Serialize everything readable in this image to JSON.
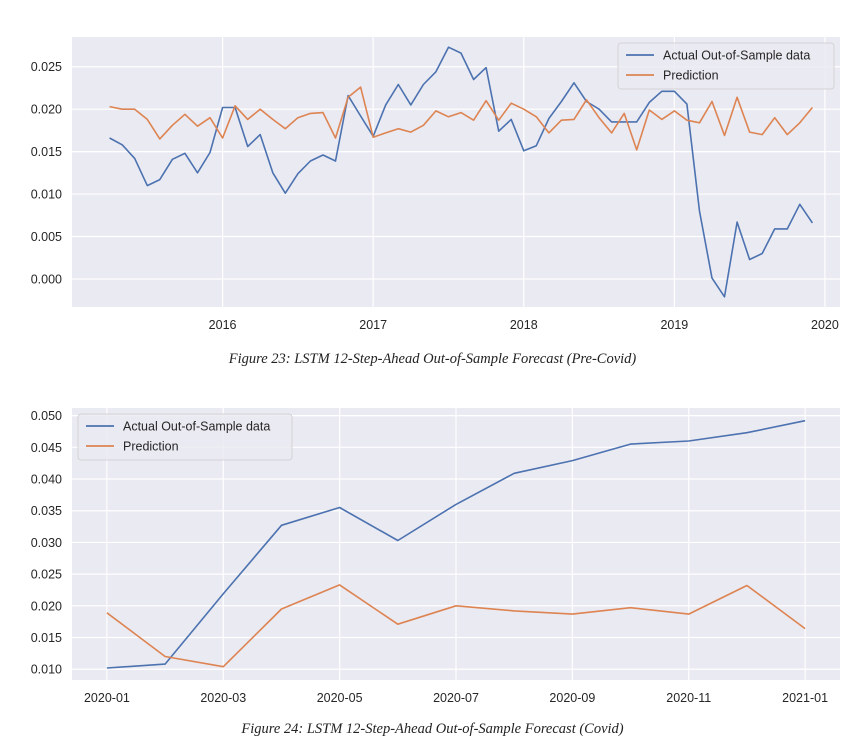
{
  "chart_data": [
    {
      "type": "line",
      "caption": "Figure 23: LSTM 12-Step-Ahead Out-of-Sample Forecast (Pre-Covid)",
      "x_start": 2015.25,
      "x_step_months": 1,
      "xlim": [
        2015.0,
        2020.1
      ],
      "ylim": [
        -0.0033,
        0.0285
      ],
      "x_ticks": [
        {
          "v": 2016,
          "label": "2016"
        },
        {
          "v": 2017,
          "label": "2017"
        },
        {
          "v": 2018,
          "label": "2018"
        },
        {
          "v": 2019,
          "label": "2019"
        },
        {
          "v": 2020,
          "label": "2020"
        }
      ],
      "y_ticks": [
        {
          "v": 0.0,
          "label": "0.000"
        },
        {
          "v": 0.005,
          "label": "0.005"
        },
        {
          "v": 0.01,
          "label": "0.010"
        },
        {
          "v": 0.015,
          "label": "0.015"
        },
        {
          "v": 0.02,
          "label": "0.020"
        },
        {
          "v": 0.025,
          "label": "0.025"
        }
      ],
      "grid": true,
      "legend_position": "top-right",
      "series": [
        {
          "name": "Actual Out-of-Sample data",
          "color": "#4c72b0",
          "values": [
            0.0166,
            0.0158,
            0.0142,
            0.011,
            0.0117,
            0.0141,
            0.0148,
            0.0125,
            0.0149,
            0.0202,
            0.0202,
            0.0156,
            0.017,
            0.0125,
            0.0101,
            0.0124,
            0.0139,
            0.0146,
            0.0139,
            0.0216,
            0.0192,
            0.0168,
            0.0205,
            0.0229,
            0.0205,
            0.0229,
            0.0244,
            0.0273,
            0.0266,
            0.0235,
            0.0249,
            0.0174,
            0.0188,
            0.0151,
            0.0157,
            0.0189,
            0.0209,
            0.0231,
            0.0209,
            0.02,
            0.0185,
            0.0185,
            0.0185,
            0.0208,
            0.0221,
            0.0221,
            0.0206,
            0.008,
            0.0001,
            -0.0021,
            0.0067,
            0.0023,
            0.003,
            0.0059,
            0.0059,
            0.0088,
            0.0066
          ]
        },
        {
          "name": "Prediction",
          "color": "#dd8452",
          "values": [
            0.0203,
            0.02,
            0.02,
            0.0188,
            0.0165,
            0.0181,
            0.0194,
            0.018,
            0.019,
            0.0166,
            0.0204,
            0.0188,
            0.02,
            0.0188,
            0.0177,
            0.019,
            0.0195,
            0.0196,
            0.0166,
            0.0214,
            0.0226,
            0.0167,
            0.0172,
            0.0177,
            0.0173,
            0.0181,
            0.0198,
            0.0191,
            0.0196,
            0.0187,
            0.021,
            0.0187,
            0.0207,
            0.02,
            0.0191,
            0.0172,
            0.0187,
            0.0188,
            0.0211,
            0.019,
            0.0172,
            0.0195,
            0.0152,
            0.0199,
            0.0188,
            0.0198,
            0.0187,
            0.0184,
            0.0209,
            0.0169,
            0.0214,
            0.0173,
            0.017,
            0.019,
            0.017,
            0.0184,
            0.0202
          ]
        }
      ]
    },
    {
      "type": "line",
      "caption": "Figure 24: LSTM 12-Step-Ahead Out-of-Sample Forecast (Covid)",
      "x_start": 0,
      "x_step_months": 1,
      "xlim": [
        -0.6,
        12.6
      ],
      "ylim": [
        0.0083,
        0.0512
      ],
      "x_ticks": [
        {
          "v": 0,
          "label": "2020-01"
        },
        {
          "v": 2,
          "label": "2020-03"
        },
        {
          "v": 4,
          "label": "2020-05"
        },
        {
          "v": 6,
          "label": "2020-07"
        },
        {
          "v": 8,
          "label": "2020-09"
        },
        {
          "v": 10,
          "label": "2020-11"
        },
        {
          "v": 12,
          "label": "2021-01"
        }
      ],
      "y_ticks": [
        {
          "v": 0.01,
          "label": "0.010"
        },
        {
          "v": 0.015,
          "label": "0.015"
        },
        {
          "v": 0.02,
          "label": "0.020"
        },
        {
          "v": 0.025,
          "label": "0.025"
        },
        {
          "v": 0.03,
          "label": "0.030"
        },
        {
          "v": 0.035,
          "label": "0.035"
        },
        {
          "v": 0.04,
          "label": "0.040"
        },
        {
          "v": 0.045,
          "label": "0.045"
        },
        {
          "v": 0.05,
          "label": "0.050"
        }
      ],
      "grid": true,
      "legend_position": "top-left",
      "series": [
        {
          "name": "Actual Out-of-Sample data",
          "color": "#4c72b0",
          "values": [
            0.0102,
            0.0108,
            0.0219,
            0.0327,
            0.0355,
            0.0303,
            0.036,
            0.0409,
            0.0429,
            0.0455,
            0.046,
            0.0473,
            0.0492
          ]
        },
        {
          "name": "Prediction",
          "color": "#dd8452",
          "values": [
            0.0189,
            0.012,
            0.0104,
            0.0195,
            0.0233,
            0.0171,
            0.02,
            0.0192,
            0.0187,
            0.0197,
            0.0187,
            0.0232,
            0.0164
          ]
        }
      ]
    }
  ]
}
